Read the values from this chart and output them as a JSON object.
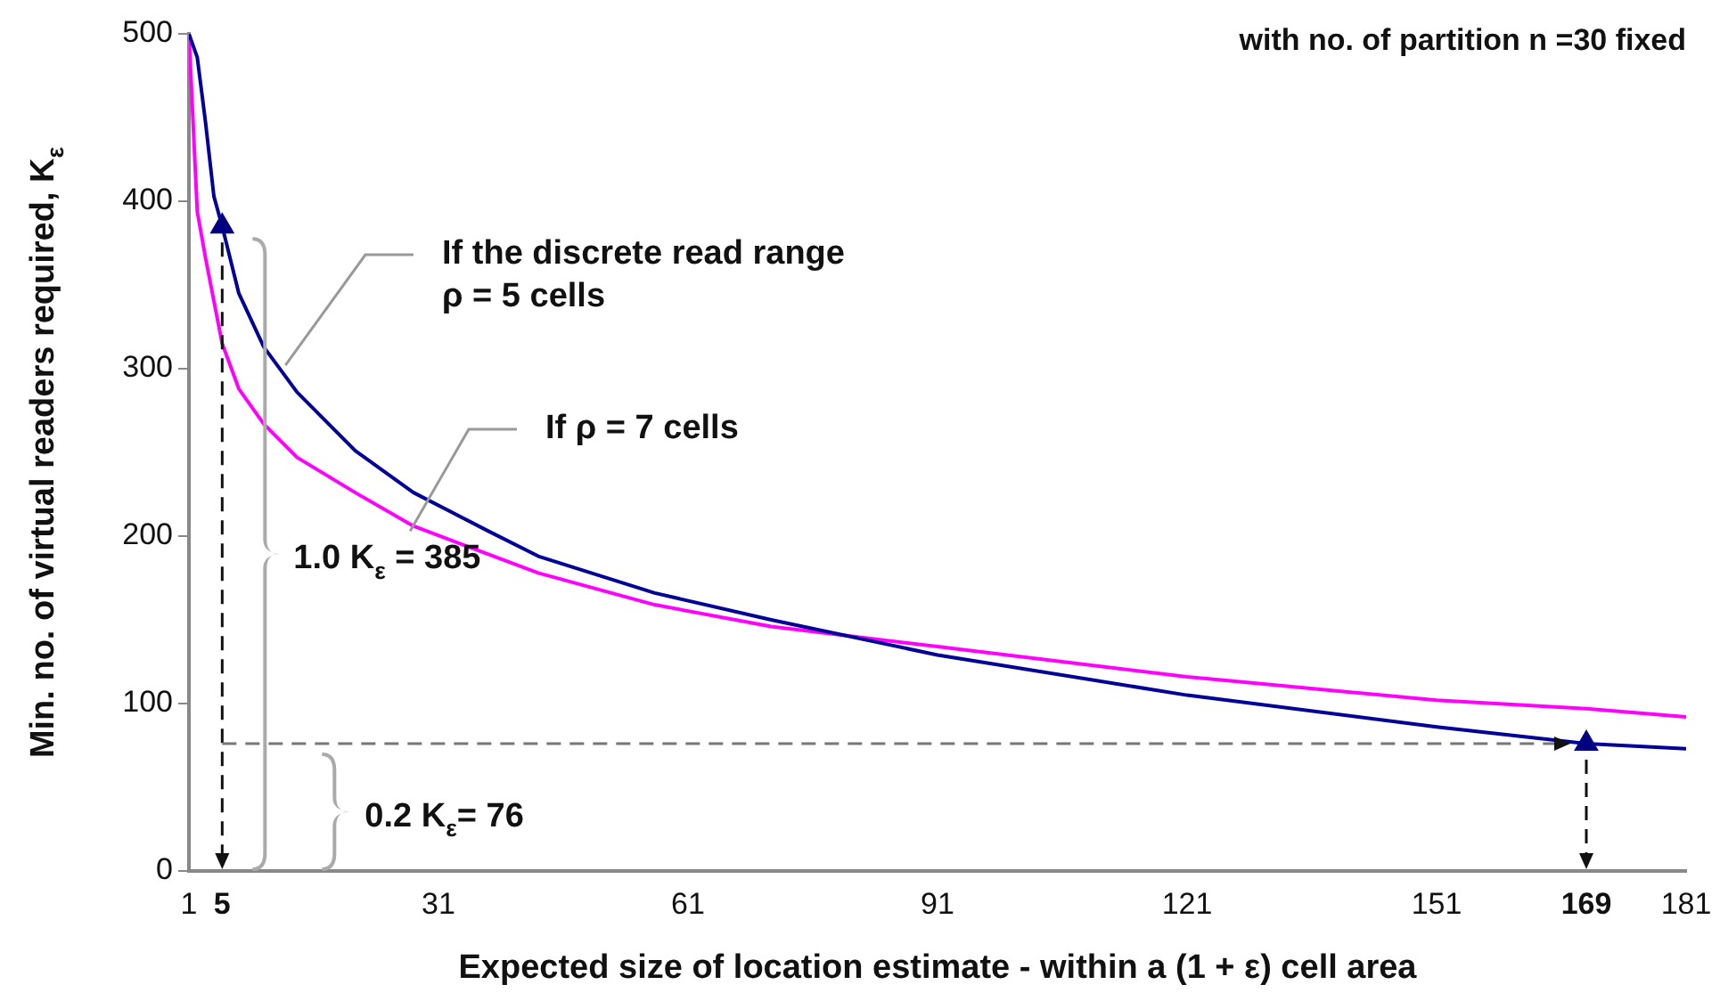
{
  "chart_data": {
    "type": "line",
    "subtitle": "with no. of partition n =30 fixed",
    "xlabel": "Expected size of location estimate - within a (1 + ε) cell area",
    "ylabel": "Min. no. of virtual readers required, K$_{ε}$",
    "xlim": [
      1,
      181
    ],
    "xticks": [
      1,
      5,
      31,
      61,
      91,
      121,
      151,
      169,
      181
    ],
    "ylim": [
      0,
      500
    ],
    "yticks": [
      0,
      100,
      200,
      300,
      400,
      500
    ],
    "grid": false,
    "legend": false,
    "marker": "none",
    "line_style": "solid",
    "series": [
      {
        "color": "#000099",
        "x": [
          1,
          2,
          3,
          4,
          5,
          7,
          10,
          14,
          21,
          28,
          37,
          43,
          57,
          71,
          91,
          121,
          151,
          169,
          181
        ],
        "values": [
          500,
          486,
          447,
          403,
          385,
          345,
          313,
          286,
          251,
          226,
          203,
          188,
          166,
          150,
          129,
          105,
          86,
          76,
          73
        ]
      },
      {
        "color": "#ff00ff",
        "x": [
          1,
          2,
          3,
          5,
          7,
          10,
          14,
          21,
          28,
          43,
          57,
          71,
          91,
          121,
          151,
          169,
          181
        ],
        "values": [
          500,
          394,
          366,
          315,
          288,
          267,
          247,
          226,
          206,
          178,
          159,
          146,
          134,
          116,
          102,
          97,
          92
        ]
      },
      {
        "type": "scatter",
        "marker": "triangle",
        "color": "#000080",
        "x": [
          5,
          169
        ],
        "values": [
          385,
          76
        ]
      }
    ],
    "ref_lines": [
      {
        "axis": "x",
        "value": 5,
        "line_style": "dashed",
        "color": "#111111"
      },
      {
        "axis": "x",
        "value": 169,
        "line_style": "dashed",
        "color": "#111111"
      },
      {
        "axis": "y",
        "value": 76,
        "line_style": "dashed",
        "color": "#777777"
      }
    ],
    "annotations": [
      {
        "text": "If the discrete read range\nρ = 5 cells",
        "x": 12.6,
        "y": 302
      },
      {
        "text": "If ρ = 7 cells",
        "x": 27.6,
        "y": 203
      },
      "1.0 K$_{ε}$ = 385",
      "0.2 K$_{ε}$= 76"
    ]
  }
}
